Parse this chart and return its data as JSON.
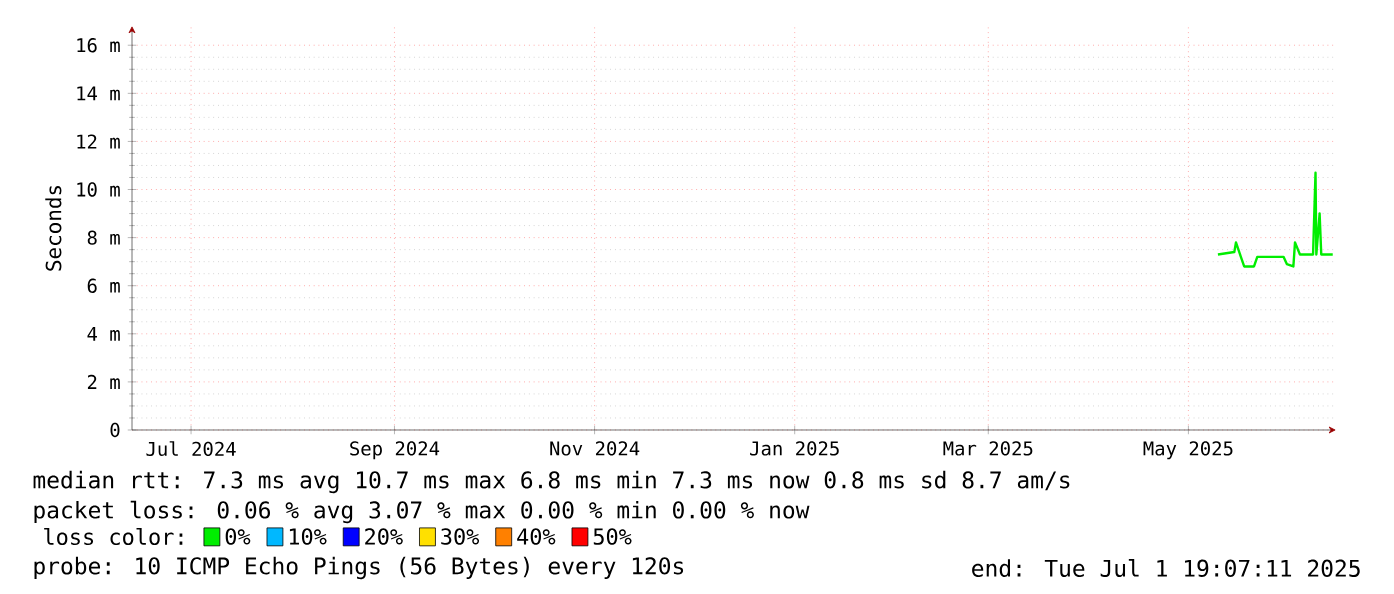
{
  "chart_data": {
    "type": "line",
    "ylabel": "Seconds",
    "xlim": [
      "2024-06-13",
      "2025-06-15"
    ],
    "xticks": [
      {
        "value": "2024-07-01",
        "label": "Jul 2024"
      },
      {
        "value": "2024-09-01",
        "label": "Sep 2024"
      },
      {
        "value": "2024-11-01",
        "label": "Nov 2024"
      },
      {
        "value": "2025-01-01",
        "label": "Jan 2025"
      },
      {
        "value": "2025-03-01",
        "label": "Mar 2025"
      },
      {
        "value": "2025-05-01",
        "label": "May 2025"
      }
    ],
    "ylim": [
      0,
      16.8
    ],
    "yticks": [
      0,
      {
        "value": 2,
        "label": "2 m"
      },
      {
        "value": 4,
        "label": "4 m"
      },
      {
        "value": 6,
        "label": "6 m"
      },
      {
        "value": 8,
        "label": "8 m"
      },
      {
        "value": 10,
        "label": "10 m"
      },
      {
        "value": 12,
        "label": "12 m"
      },
      {
        "value": 14,
        "label": "14 m"
      },
      {
        "value": 16,
        "label": "16 m"
      }
    ],
    "grid": true,
    "legend": "bottom",
    "legend_title": "loss color:",
    "x": [
      "2025-05-10",
      "2025-05-15",
      "2025-05-15T12:00",
      "2025-05-17",
      "2025-05-18",
      "2025-05-21",
      "2025-05-22",
      "2025-05-30",
      "2025-05-31",
      "2025-06-02",
      "2025-06-02T12:00",
      "2025-06-04",
      "2025-06-08",
      "2025-06-08T18:00",
      "2025-06-09",
      "2025-06-10",
      "2025-06-10T12:00",
      "2025-06-14"
    ],
    "series": [
      {
        "name": "0%",
        "color": "#00ee00",
        "values": [
          7.3,
          7.4,
          7.8,
          7.2,
          6.8,
          6.8,
          7.2,
          7.2,
          6.9,
          6.8,
          7.8,
          7.3,
          7.3,
          10.7,
          7.3,
          9.0,
          7.3,
          7.3
        ]
      },
      {
        "name": "10%",
        "color": "#00b8ff",
        "values": [
          null,
          null,
          null,
          null,
          null,
          null,
          null,
          null,
          null,
          null,
          null,
          null,
          null,
          null,
          null,
          null,
          null,
          null
        ]
      },
      {
        "name": "20%",
        "color": "#0000ff",
        "values": [
          null,
          null,
          null,
          null,
          null,
          null,
          null,
          null,
          null,
          null,
          null,
          null,
          null,
          null,
          null,
          null,
          null,
          null
        ]
      },
      {
        "name": "30%",
        "color": "#ffe000",
        "values": [
          null,
          null,
          null,
          null,
          null,
          null,
          null,
          null,
          null,
          null,
          null,
          null,
          null,
          null,
          null,
          null,
          null,
          null
        ]
      },
      {
        "name": "40%",
        "color": "#ff8000",
        "values": [
          null,
          null,
          null,
          null,
          null,
          null,
          null,
          null,
          null,
          null,
          null,
          null,
          null,
          null,
          null,
          null,
          null,
          null
        ]
      },
      {
        "name": "50%",
        "color": "#ff0000",
        "values": [
          null,
          null,
          null,
          null,
          null,
          null,
          null,
          null,
          null,
          null,
          null,
          null,
          null,
          null,
          null,
          null,
          null,
          null
        ]
      }
    ],
    "annotations": [
      "median rtt: 7.3 ms avg 10.7 ms max 6.8 ms min 7.3 ms now 0.8 ms sd 8.7 am/s",
      "packet loss: 0.06 % avg 3.07 % max 0.00 % min 0.00 % now",
      "probe: 10 ICMP Echo Pings (56 Bytes) every 120s",
      "end: Tue Jul 1 19:07:11 2025"
    ]
  }
}
